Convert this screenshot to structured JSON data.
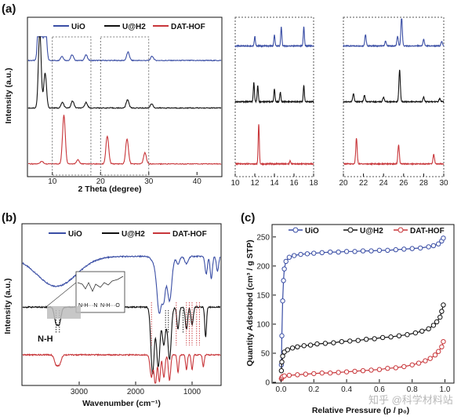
{
  "figure": {
    "colors": {
      "uio": "#3a4ea5",
      "u_h2": "#111111",
      "dat_hof": "#c8363a",
      "inset_shade": "#bdbdbd"
    },
    "watermark": "知乎 @科学材料站",
    "inset_labels": [
      "N-H···N",
      "N-H···O"
    ],
    "annotation": "N-H"
  },
  "chart_data": [
    {
      "panel": "(a)",
      "type": "line",
      "subtype": "xrd-stacked",
      "xlabel": "2 Theta (degree)",
      "ylabel": "Intensity (a.u.)",
      "xlim": [
        5,
        45
      ],
      "x_ticks": [
        10,
        20,
        30,
        40
      ],
      "legend": {
        "placement": "top",
        "entries": [
          "UiO",
          "U@H2",
          "DAT-HOF"
        ]
      },
      "dashed_zoom_regions": [
        [
          10,
          18
        ],
        [
          20,
          30
        ]
      ],
      "series": [
        {
          "name": "UiO",
          "baseline": 0.82,
          "peaks": [
            [
              7.4,
              0.95
            ],
            [
              8.5,
              0.3
            ],
            [
              12.0,
              0.03
            ],
            [
              14.1,
              0.04
            ],
            [
              17.0,
              0.04
            ],
            [
              25.7,
              0.06
            ],
            [
              30.7,
              0.03
            ]
          ]
        },
        {
          "name": "U@H2",
          "baseline": 0.48,
          "peaks": [
            [
              7.4,
              0.55
            ],
            [
              8.5,
              0.25
            ],
            [
              12.1,
              0.04
            ],
            [
              14.2,
              0.05
            ],
            [
              17.0,
              0.04
            ],
            [
              25.6,
              0.06
            ],
            [
              30.6,
              0.03
            ]
          ]
        },
        {
          "name": "DAT-HOF",
          "baseline": 0.08,
          "peaks": [
            [
              7.8,
              0.02
            ],
            [
              12.4,
              0.35
            ],
            [
              15.3,
              0.03
            ],
            [
              21.4,
              0.2
            ],
            [
              25.5,
              0.18
            ],
            [
              29.2,
              0.08
            ]
          ]
        }
      ]
    },
    {
      "panel": "(a) zoom 1",
      "type": "line",
      "xlim": [
        10,
        18
      ],
      "x_ticks": [
        10,
        12,
        14,
        16,
        18
      ],
      "series": [
        {
          "name": "UiO",
          "baseline": 0.82,
          "peaks": [
            [
              12.0,
              0.06
            ],
            [
              14.0,
              0.07
            ],
            [
              14.7,
              0.12
            ],
            [
              17.0,
              0.12
            ]
          ]
        },
        {
          "name": "U@H2",
          "baseline": 0.47,
          "peaks": [
            [
              11.9,
              0.12
            ],
            [
              12.3,
              0.1
            ],
            [
              14.0,
              0.08
            ],
            [
              14.6,
              0.06
            ],
            [
              17.0,
              0.1
            ]
          ]
        },
        {
          "name": "DAT-HOF",
          "baseline": 0.08,
          "peaks": [
            [
              12.4,
              0.25
            ],
            [
              15.6,
              0.02
            ]
          ]
        }
      ]
    },
    {
      "panel": "(a) zoom 2",
      "type": "line",
      "xlim": [
        20,
        30
      ],
      "x_ticks": [
        20,
        22,
        24,
        26,
        28,
        30
      ],
      "series": [
        {
          "name": "UiO",
          "baseline": 0.82,
          "peaks": [
            [
              22.2,
              0.07
            ],
            [
              24.2,
              0.03
            ],
            [
              25.4,
              0.06
            ],
            [
              25.8,
              0.18
            ],
            [
              28.0,
              0.04
            ],
            [
              29.8,
              0.03
            ]
          ]
        },
        {
          "name": "U@H2",
          "baseline": 0.47,
          "peaks": [
            [
              21.0,
              0.05
            ],
            [
              22.1,
              0.04
            ],
            [
              24.0,
              0.03
            ],
            [
              25.6,
              0.2
            ],
            [
              28.0,
              0.03
            ],
            [
              29.6,
              0.02
            ]
          ]
        },
        {
          "name": "DAT-HOF",
          "baseline": 0.08,
          "peaks": [
            [
              21.3,
              0.16
            ],
            [
              25.5,
              0.12
            ],
            [
              29.0,
              0.06
            ]
          ]
        }
      ]
    },
    {
      "panel": "(b)",
      "type": "line",
      "subtype": "ftir-transmittance",
      "xlabel": "Wavenumber (cm⁻¹)",
      "ylabel": "Intensity (a.u.)",
      "xlim": [
        4000,
        500
      ],
      "x_ticks": [
        3000,
        2000,
        1000
      ],
      "legend": {
        "placement": "top",
        "entries": [
          "UiO",
          "U@H2",
          "DAT-HOF"
        ]
      },
      "series": [
        {
          "name": "UiO",
          "baseline": 0.86,
          "dips": [
            [
              3400,
              0.2,
              350
            ],
            [
              1650,
              0.05,
              60
            ],
            [
              1580,
              0.35,
              40
            ],
            [
              1500,
              0.25,
              30
            ],
            [
              1400,
              0.3,
              40
            ],
            [
              1250,
              0.05,
              30
            ],
            [
              1100,
              0.05,
              30
            ],
            [
              750,
              0.12,
              20
            ],
            [
              660,
              0.15,
              20
            ],
            [
              550,
              0.1,
              20
            ]
          ]
        },
        {
          "name": "U@H2",
          "baseline": 0.52,
          "dips": [
            [
              3410,
              0.1,
              30
            ],
            [
              3350,
              0.1,
              30
            ],
            [
              1700,
              0.45,
              30
            ],
            [
              1600,
              0.4,
              30
            ],
            [
              1500,
              0.25,
              30
            ],
            [
              1400,
              0.35,
              30
            ],
            [
              1250,
              0.15,
              20
            ],
            [
              1100,
              0.15,
              20
            ],
            [
              1000,
              0.12,
              20
            ],
            [
              760,
              0.2,
              15
            ]
          ]
        },
        {
          "name": "DAT-HOF",
          "baseline": 0.2,
          "dips": [
            [
              3410,
              0.06,
              30
            ],
            [
              3350,
              0.06,
              30
            ],
            [
              1720,
              0.15,
              25
            ],
            [
              1650,
              0.2,
              20
            ],
            [
              1580,
              0.18,
              20
            ],
            [
              1500,
              0.15,
              20
            ],
            [
              1400,
              0.17,
              20
            ],
            [
              1250,
              0.12,
              15
            ],
            [
              1100,
              0.1,
              15
            ],
            [
              1000,
              0.1,
              15
            ],
            [
              800,
              0.08,
              15
            ]
          ]
        }
      ],
      "dotted_markers_black": [
        3410,
        3350,
        1470,
        1420,
        1160
      ],
      "dotted_markers_red": [
        1720,
        1280,
        1100,
        1050,
        1000,
        920,
        870
      ]
    },
    {
      "panel": "(c)",
      "type": "scatter",
      "subtype": "isotherm",
      "xlabel": "Relative Pressure (p / p₀)",
      "ylabel": "Quantity Adsorbed (cm³ / g STP)",
      "xlim": [
        -0.05,
        1.05
      ],
      "ylim": [
        0,
        270
      ],
      "x_ticks": [
        0.0,
        0.2,
        0.4,
        0.6,
        0.8,
        1.0
      ],
      "x_tick_labels": [
        "0.0",
        "0.2",
        "0.4",
        "0.6",
        "0.8",
        "1.0"
      ],
      "y_ticks": [
        0,
        50,
        100,
        150,
        200,
        250
      ],
      "legend": {
        "placement": "top",
        "entries": [
          "UiO",
          "U@H2",
          "DAT-HOF"
        ]
      },
      "series": [
        {
          "name": "UiO",
          "x": [
            0.002,
            0.005,
            0.01,
            0.015,
            0.02,
            0.03,
            0.05,
            0.08,
            0.12,
            0.16,
            0.2,
            0.25,
            0.3,
            0.35,
            0.4,
            0.45,
            0.5,
            0.55,
            0.6,
            0.65,
            0.7,
            0.75,
            0.8,
            0.85,
            0.9,
            0.93,
            0.96,
            0.98,
            0.99
          ],
          "y": [
            30,
            80,
            140,
            175,
            195,
            208,
            215,
            218,
            220,
            221,
            222,
            223,
            224,
            224,
            225,
            225,
            226,
            226,
            227,
            227,
            228,
            229,
            230,
            231,
            233,
            235,
            238,
            243,
            248
          ]
        },
        {
          "name": "U@H2",
          "x": [
            0.002,
            0.005,
            0.01,
            0.02,
            0.04,
            0.07,
            0.1,
            0.14,
            0.18,
            0.22,
            0.27,
            0.32,
            0.37,
            0.42,
            0.47,
            0.52,
            0.57,
            0.62,
            0.67,
            0.72,
            0.77,
            0.82,
            0.86,
            0.9,
            0.93,
            0.95,
            0.97,
            0.98,
            0.99
          ],
          "y": [
            20,
            35,
            45,
            52,
            56,
            59,
            61,
            63,
            64,
            66,
            67,
            68,
            70,
            71,
            72,
            74,
            75,
            77,
            78,
            80,
            82,
            85,
            88,
            92,
            98,
            104,
            112,
            122,
            133
          ]
        },
        {
          "name": "DAT-HOF",
          "x": [
            0.002,
            0.005,
            0.01,
            0.02,
            0.05,
            0.1,
            0.15,
            0.2,
            0.25,
            0.3,
            0.35,
            0.4,
            0.45,
            0.5,
            0.55,
            0.6,
            0.65,
            0.7,
            0.75,
            0.8,
            0.84,
            0.88,
            0.91,
            0.94,
            0.96,
            0.98,
            0.99
          ],
          "y": [
            6,
            8,
            10,
            11,
            12,
            13,
            14,
            15,
            16,
            16,
            17,
            18,
            19,
            20,
            21,
            22,
            24,
            25,
            27,
            30,
            33,
            37,
            41,
            47,
            53,
            61,
            70
          ]
        }
      ]
    }
  ]
}
